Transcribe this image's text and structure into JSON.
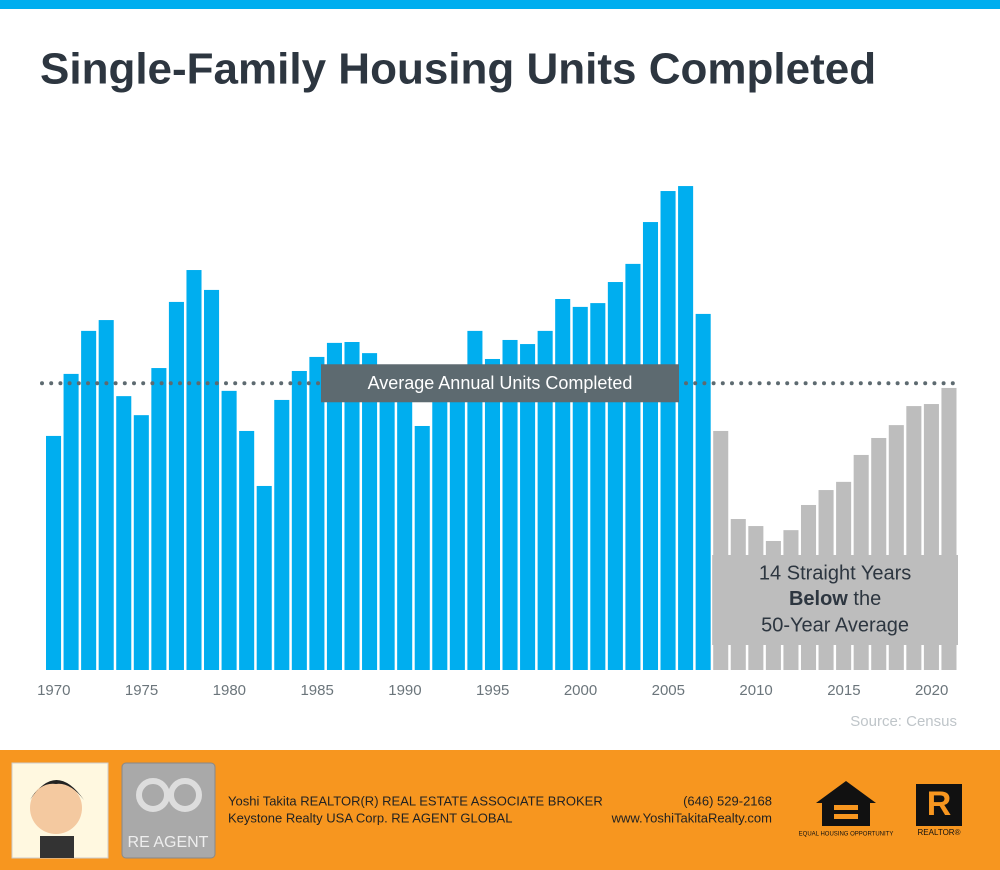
{
  "chart_data": {
    "type": "bar",
    "title": "Single-Family Housing Units Completed",
    "categories": [
      "1970",
      null,
      null,
      null,
      null,
      "1975",
      null,
      null,
      null,
      null,
      "1980",
      null,
      null,
      null,
      null,
      "1985",
      null,
      null,
      null,
      null,
      "1990",
      null,
      null,
      null,
      null,
      "1995",
      null,
      null,
      null,
      null,
      "2000",
      null,
      null,
      null,
      null,
      "2005",
      null,
      null,
      null,
      null,
      "2010",
      null,
      null,
      null,
      null,
      "2015",
      null,
      null,
      null,
      null,
      "2020",
      null
    ],
    "values": [
      800,
      1012,
      1159,
      1196,
      936,
      871,
      1032,
      1258,
      1367,
      1299,
      954,
      817,
      629,
      923,
      1022,
      1070,
      1118,
      1121,
      1083,
      1025,
      966,
      834,
      964,
      1039,
      1159,
      1063,
      1128,
      1114,
      1159,
      1268,
      1241,
      1254,
      1326,
      1388,
      1531,
      1637,
      1654,
      1217,
      817,
      516,
      492,
      441,
      478,
      564,
      615,
      643,
      735,
      793,
      837,
      902,
      909,
      964
    ],
    "colors": [
      "#00aeef",
      "#00aeef",
      "#00aeef",
      "#00aeef",
      "#00aeef",
      "#00aeef",
      "#00aeef",
      "#00aeef",
      "#00aeef",
      "#00aeef",
      "#00aeef",
      "#00aeef",
      "#00aeef",
      "#00aeef",
      "#00aeef",
      "#00aeef",
      "#00aeef",
      "#00aeef",
      "#00aeef",
      "#00aeef",
      "#00aeef",
      "#00aeef",
      "#00aeef",
      "#00aeef",
      "#00aeef",
      "#00aeef",
      "#00aeef",
      "#00aeef",
      "#00aeef",
      "#00aeef",
      "#00aeef",
      "#00aeef",
      "#00aeef",
      "#00aeef",
      "#00aeef",
      "#00aeef",
      "#00aeef",
      "#00aeef",
      "#bdbdbd",
      "#bdbdbd",
      "#bdbdbd",
      "#bdbdbd",
      "#bdbdbd",
      "#bdbdbd",
      "#bdbdbd",
      "#bdbdbd",
      "#bdbdbd",
      "#bdbdbd",
      "#bdbdbd",
      "#bdbdbd",
      "#bdbdbd",
      "#bdbdbd"
    ],
    "ylim": [
      0,
      1700
    ],
    "average": 980,
    "average_label": "Average Annual Units Completed",
    "annotation": {
      "line1": "14 Straight Years",
      "bold": "Below",
      "rest": " the",
      "line3": "50-Year Average"
    },
    "source": "Source: Census"
  },
  "footer": {
    "agent": "Yoshi Takita REALTOR(R) REAL ESTATE ASSOCIATE BROKER",
    "company": "Keystone Realty USA Corp.  RE AGENT GLOBAL",
    "phone": "(646) 529-2168",
    "website": "www.YoshiTakitaRealty.com",
    "logo_text": "RE AGENT",
    "eho_text": "EQUAL HOUSING OPPORTUNITY",
    "realtor_letter": "R",
    "realtor_text": "REALTOR®"
  }
}
